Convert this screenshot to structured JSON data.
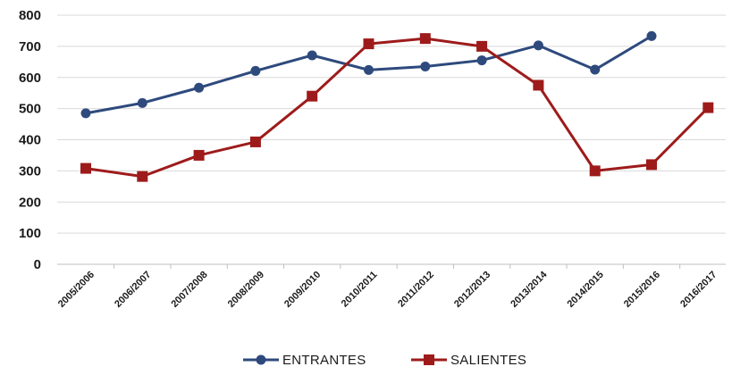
{
  "chart_data": {
    "type": "line",
    "title": "",
    "xlabel": "",
    "ylabel": "",
    "ylim": [
      0,
      800
    ],
    "yticks": [
      0,
      100,
      200,
      300,
      400,
      500,
      600,
      700,
      800
    ],
    "grid": "horizontal",
    "legend_position": "bottom",
    "categories": [
      "2005/2006",
      "2006/2007",
      "2007/2008",
      "2008/2009",
      "2009/2010",
      "2010/2011",
      "2011/2012",
      "2012/2013",
      "2013/2014",
      "2014/2015",
      "2015/2016",
      "2016/2017"
    ],
    "series": [
      {
        "name": "ENTRANTES",
        "color": "#2e4a7d",
        "marker": "circle",
        "values": [
          485,
          518,
          567,
          621,
          671,
          624,
          635,
          655,
          703,
          625,
          733,
          null
        ]
      },
      {
        "name": "SALIENTES",
        "color": "#9e1b1b",
        "marker": "square",
        "values": [
          308,
          282,
          350,
          393,
          540,
          708,
          725,
          700,
          575,
          300,
          320,
          503
        ]
      }
    ]
  }
}
